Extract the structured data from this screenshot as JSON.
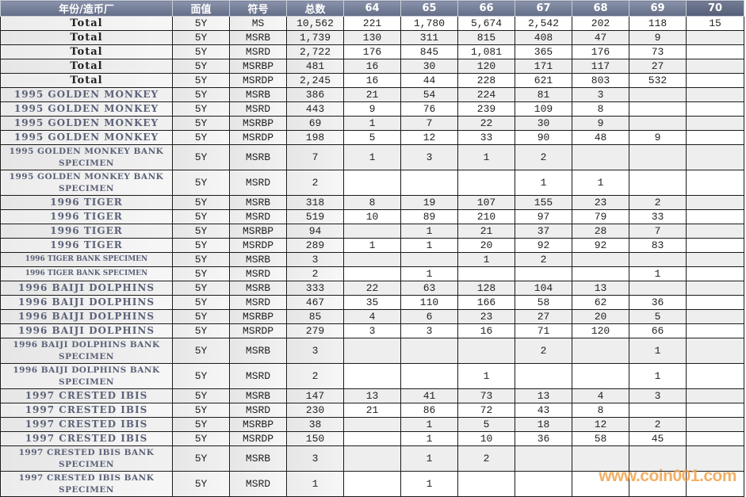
{
  "headers": [
    "年份/造币厂",
    "面值",
    "符号",
    "总数",
    "64",
    "65",
    "66",
    "67",
    "68",
    "69",
    "70"
  ],
  "rows": [
    {
      "name": "Total",
      "face": "5Y",
      "code": "MS",
      "total": "10,562",
      "grades": [
        "221",
        "1,780",
        "5,674",
        "2,542",
        "202",
        "118",
        "15"
      ]
    },
    {
      "name": "Total",
      "face": "5Y",
      "code": "MSRB",
      "total": "1,739",
      "grades": [
        "130",
        "311",
        "815",
        "408",
        "47",
        "9",
        ""
      ]
    },
    {
      "name": "Total",
      "face": "5Y",
      "code": "MSRD",
      "total": "2,722",
      "grades": [
        "176",
        "845",
        "1,081",
        "365",
        "176",
        "73",
        ""
      ]
    },
    {
      "name": "Total",
      "face": "5Y",
      "code": "MSRBP",
      "total": "481",
      "grades": [
        "16",
        "30",
        "120",
        "171",
        "117",
        "27",
        ""
      ]
    },
    {
      "name": "Total",
      "face": "5Y",
      "code": "MSRDP",
      "total": "2,245",
      "grades": [
        "16",
        "44",
        "228",
        "621",
        "803",
        "532",
        ""
      ]
    },
    {
      "name": "1995 GOLDEN MONKEY",
      "face": "5Y",
      "code": "MSRB",
      "total": "386",
      "grades": [
        "21",
        "54",
        "224",
        "81",
        "3",
        "",
        ""
      ]
    },
    {
      "name": "1995 GOLDEN MONKEY",
      "face": "5Y",
      "code": "MSRD",
      "total": "443",
      "grades": [
        "9",
        "76",
        "239",
        "109",
        "8",
        "",
        ""
      ]
    },
    {
      "name": "1995 GOLDEN MONKEY",
      "face": "5Y",
      "code": "MSRBP",
      "total": "69",
      "grades": [
        "1",
        "7",
        "22",
        "30",
        "9",
        "",
        ""
      ]
    },
    {
      "name": "1995 GOLDEN MONKEY",
      "face": "5Y",
      "code": "MSRDP",
      "total": "198",
      "grades": [
        "5",
        "12",
        "33",
        "90",
        "48",
        "9",
        ""
      ]
    },
    {
      "name": "1995 GOLDEN MONKEY BANK SPECIMEN",
      "face": "5Y",
      "code": "MSRB",
      "total": "7",
      "grades": [
        "1",
        "3",
        "1",
        "2",
        "",
        "",
        ""
      ]
    },
    {
      "name": "1995 GOLDEN MONKEY BANK SPECIMEN",
      "face": "5Y",
      "code": "MSRD",
      "total": "2",
      "grades": [
        "",
        "",
        "",
        "1",
        "1",
        "",
        ""
      ]
    },
    {
      "name": "1996 TIGER",
      "face": "5Y",
      "code": "MSRB",
      "total": "318",
      "grades": [
        "8",
        "19",
        "107",
        "155",
        "23",
        "2",
        ""
      ]
    },
    {
      "name": "1996 TIGER",
      "face": "5Y",
      "code": "MSRD",
      "total": "519",
      "grades": [
        "10",
        "89",
        "210",
        "97",
        "79",
        "33",
        ""
      ]
    },
    {
      "name": "1996 TIGER",
      "face": "5Y",
      "code": "MSRBP",
      "total": "94",
      "grades": [
        "",
        "1",
        "21",
        "37",
        "28",
        "7",
        ""
      ]
    },
    {
      "name": "1996 TIGER",
      "face": "5Y",
      "code": "MSRDP",
      "total": "289",
      "grades": [
        "1",
        "1",
        "20",
        "92",
        "92",
        "83",
        ""
      ]
    },
    {
      "name": "1996 TIGER BANK SPECIMEN",
      "face": "5Y",
      "code": "MSRB",
      "total": "3",
      "grades": [
        "",
        "",
        "1",
        "2",
        "",
        "",
        ""
      ]
    },
    {
      "name": "1996 TIGER BANK SPECIMEN",
      "face": "5Y",
      "code": "MSRD",
      "total": "2",
      "grades": [
        "",
        "1",
        "",
        "",
        "",
        "1",
        ""
      ]
    },
    {
      "name": "1996 BAIJI DOLPHINS",
      "face": "5Y",
      "code": "MSRB",
      "total": "333",
      "grades": [
        "22",
        "63",
        "128",
        "104",
        "13",
        "",
        ""
      ]
    },
    {
      "name": "1996 BAIJI DOLPHINS",
      "face": "5Y",
      "code": "MSRD",
      "total": "467",
      "grades": [
        "35",
        "110",
        "166",
        "58",
        "62",
        "36",
        ""
      ]
    },
    {
      "name": "1996 BAIJI DOLPHINS",
      "face": "5Y",
      "code": "MSRBP",
      "total": "85",
      "grades": [
        "4",
        "6",
        "23",
        "27",
        "20",
        "5",
        ""
      ]
    },
    {
      "name": "1996 BAIJI DOLPHINS",
      "face": "5Y",
      "code": "MSRDP",
      "total": "279",
      "grades": [
        "3",
        "3",
        "16",
        "71",
        "120",
        "66",
        ""
      ]
    },
    {
      "name": "1996 BAIJI DOLPHINS BANK SPECIMEN",
      "face": "5Y",
      "code": "MSRB",
      "total": "3",
      "grades": [
        "",
        "",
        "",
        "2",
        "",
        "1",
        ""
      ]
    },
    {
      "name": "1996 BAIJI DOLPHINS BANK SPECIMEN",
      "face": "5Y",
      "code": "MSRD",
      "total": "2",
      "grades": [
        "",
        "",
        "1",
        "",
        "",
        "1",
        ""
      ]
    },
    {
      "name": "1997 CRESTED IBIS",
      "face": "5Y",
      "code": "MSRB",
      "total": "147",
      "grades": [
        "13",
        "41",
        "73",
        "13",
        "4",
        "3",
        ""
      ]
    },
    {
      "name": "1997 CRESTED IBIS",
      "face": "5Y",
      "code": "MSRD",
      "total": "230",
      "grades": [
        "21",
        "86",
        "72",
        "43",
        "8",
        "",
        ""
      ]
    },
    {
      "name": "1997 CRESTED IBIS",
      "face": "5Y",
      "code": "MSRBP",
      "total": "38",
      "grades": [
        "",
        "1",
        "5",
        "18",
        "12",
        "2",
        ""
      ]
    },
    {
      "name": "1997 CRESTED IBIS",
      "face": "5Y",
      "code": "MSRDP",
      "total": "150",
      "grades": [
        "",
        "1",
        "10",
        "36",
        "58",
        "45",
        ""
      ]
    },
    {
      "name": "1997 CRESTED IBIS BANK SPECIMEN",
      "face": "5Y",
      "code": "MSRB",
      "total": "3",
      "grades": [
        "",
        "1",
        "2",
        "",
        "",
        "",
        ""
      ]
    },
    {
      "name": "1997 CRESTED IBIS BANK SPECIMEN",
      "face": "5Y",
      "code": "MSRD",
      "total": "1",
      "grades": [
        "",
        "1",
        "",
        "",
        "",
        "",
        ""
      ]
    }
  ],
  "watermark": "www.coin001.com"
}
